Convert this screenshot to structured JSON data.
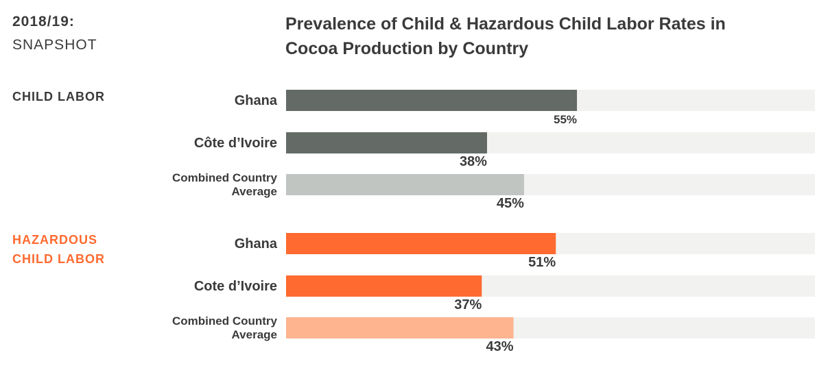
{
  "header": {
    "year": "2018/19:",
    "subtitle": "SNAPSHOT",
    "title": "Prevalence of Child & Hazardous Child Labor Rates in Cocoa Production by Country"
  },
  "chart_data": [
    {
      "type": "bar",
      "orientation": "horizontal",
      "title": "CHILD LABOR",
      "title_color": "#3a3a3a",
      "categories": [
        "Ghana",
        "Côte d’Ivoire",
        "Combined Country Average"
      ],
      "values": [
        55,
        38,
        45
      ],
      "value_labels": [
        "55%",
        "38%",
        "45%"
      ],
      "colors": [
        "#646b67",
        "#646b67",
        "#c1c5c2"
      ],
      "xlim": [
        0,
        100
      ]
    },
    {
      "type": "bar",
      "orientation": "horizontal",
      "title": "HAZARDOUS CHILD LABOR",
      "title_color": "#ff6a30",
      "categories": [
        "Ghana",
        "Cote d’Ivoire",
        "Combined Country Average"
      ],
      "values": [
        51,
        37,
        43
      ],
      "value_labels": [
        "51%",
        "37%",
        "43%"
      ],
      "colors": [
        "#ff6a30",
        "#ff6a30",
        "#fdb48f"
      ],
      "xlim": [
        0,
        100
      ]
    }
  ]
}
